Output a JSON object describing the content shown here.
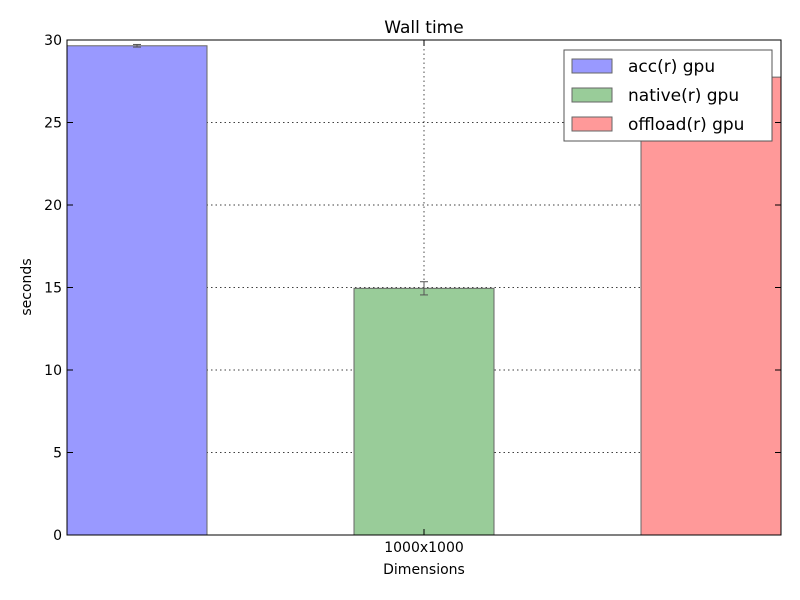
{
  "chart_data": {
    "type": "bar",
    "title": "Wall time",
    "xlabel": "Dimensions",
    "ylabel": "seconds",
    "categories": [
      "1000x1000"
    ],
    "ylim": [
      0,
      30
    ],
    "yticks": [
      0,
      5,
      10,
      15,
      20,
      25,
      30
    ],
    "grid": true,
    "legend_position": "top-right",
    "series": [
      {
        "name": "acc(r) gpu",
        "values": [
          29.65
        ],
        "error": [
          0.08
        ],
        "color": "#9999ff"
      },
      {
        "name": "native(r) gpu",
        "values": [
          14.95
        ],
        "error": [
          0.4
        ],
        "color": "#99cc99"
      },
      {
        "name": "offload(r) gpu",
        "values": [
          27.75
        ],
        "error": [
          1.2
        ],
        "color": "#ff9999"
      }
    ]
  }
}
